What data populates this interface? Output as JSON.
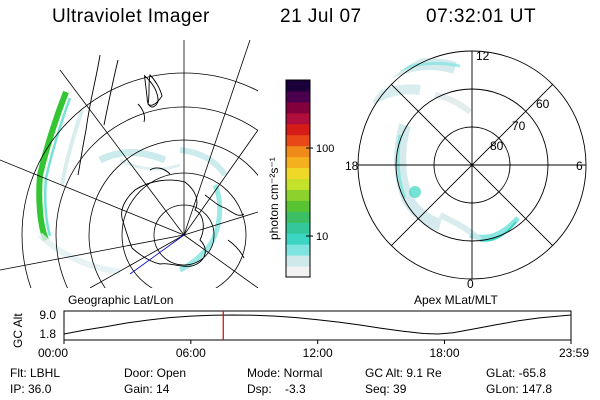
{
  "header": {
    "instrument": "Ultraviolet Imager",
    "date": "21 Jul 07",
    "time": "07:32:01 UT"
  },
  "colorbar": {
    "unit_label": "photon cm⁻²s⁻¹",
    "ticks": [
      "100",
      "10"
    ],
    "colors": [
      "#f2f2f2",
      "#cfe8ea",
      "#7fe3df",
      "#3cd5c4",
      "#35c79c",
      "#3cbe62",
      "#58c332",
      "#8bd22c",
      "#c4e12c",
      "#f0d828",
      "#f5b020",
      "#f08a18",
      "#e84818",
      "#d61c18",
      "#b00e3c",
      "#82003c",
      "#4a004c",
      "#1a0038"
    ]
  },
  "geo_panel": {
    "label": "Geographic Lat/Lon"
  },
  "mag_panel": {
    "label": "Apex MLat/MLT",
    "lat_labels": [
      "80",
      "70",
      "60"
    ],
    "mlt_labels": [
      "12",
      "18",
      "6",
      "0"
    ]
  },
  "chart_data": {
    "type": "line",
    "title": "",
    "ylabel": "GC Alt",
    "yticks": [
      "9.0",
      "1.8"
    ],
    "xticks": [
      "00:00",
      "06:00",
      "12:00",
      "18:00",
      "23:59"
    ],
    "ylim": [
      1.8,
      9.0
    ],
    "xlim_hours": [
      0,
      23.983
    ],
    "series": [
      {
        "x": [
          0,
          1,
          2,
          3,
          4,
          5,
          6,
          7,
          8,
          9,
          10,
          11,
          12,
          13,
          14,
          15,
          16,
          17,
          17.7,
          18.4,
          19.5,
          20.5,
          21.5,
          22.5,
          23.983
        ],
        "y": [
          1.8,
          3.3,
          4.6,
          6.0,
          7.1,
          8.0,
          8.6,
          8.9,
          9.0,
          8.9,
          8.6,
          8.0,
          7.2,
          6.3,
          5.2,
          4.0,
          2.9,
          2.0,
          1.8,
          2.3,
          3.9,
          5.4,
          6.8,
          7.9,
          9.0
        ]
      }
    ],
    "marker_time": "07:32:01"
  },
  "status": {
    "filter": "Flt: LBHL",
    "door": "Door: Open",
    "mode": "Mode: Normal",
    "gc_alt": "GC Alt: 9.1 Re",
    "glat": "GLat: -65.8",
    "ip": "IP: 36.0",
    "gain": "Gain: 14",
    "dsp": "Dsp:    -3.3",
    "seq": "Seq: 39",
    "glon": "GLon: 147.8"
  }
}
